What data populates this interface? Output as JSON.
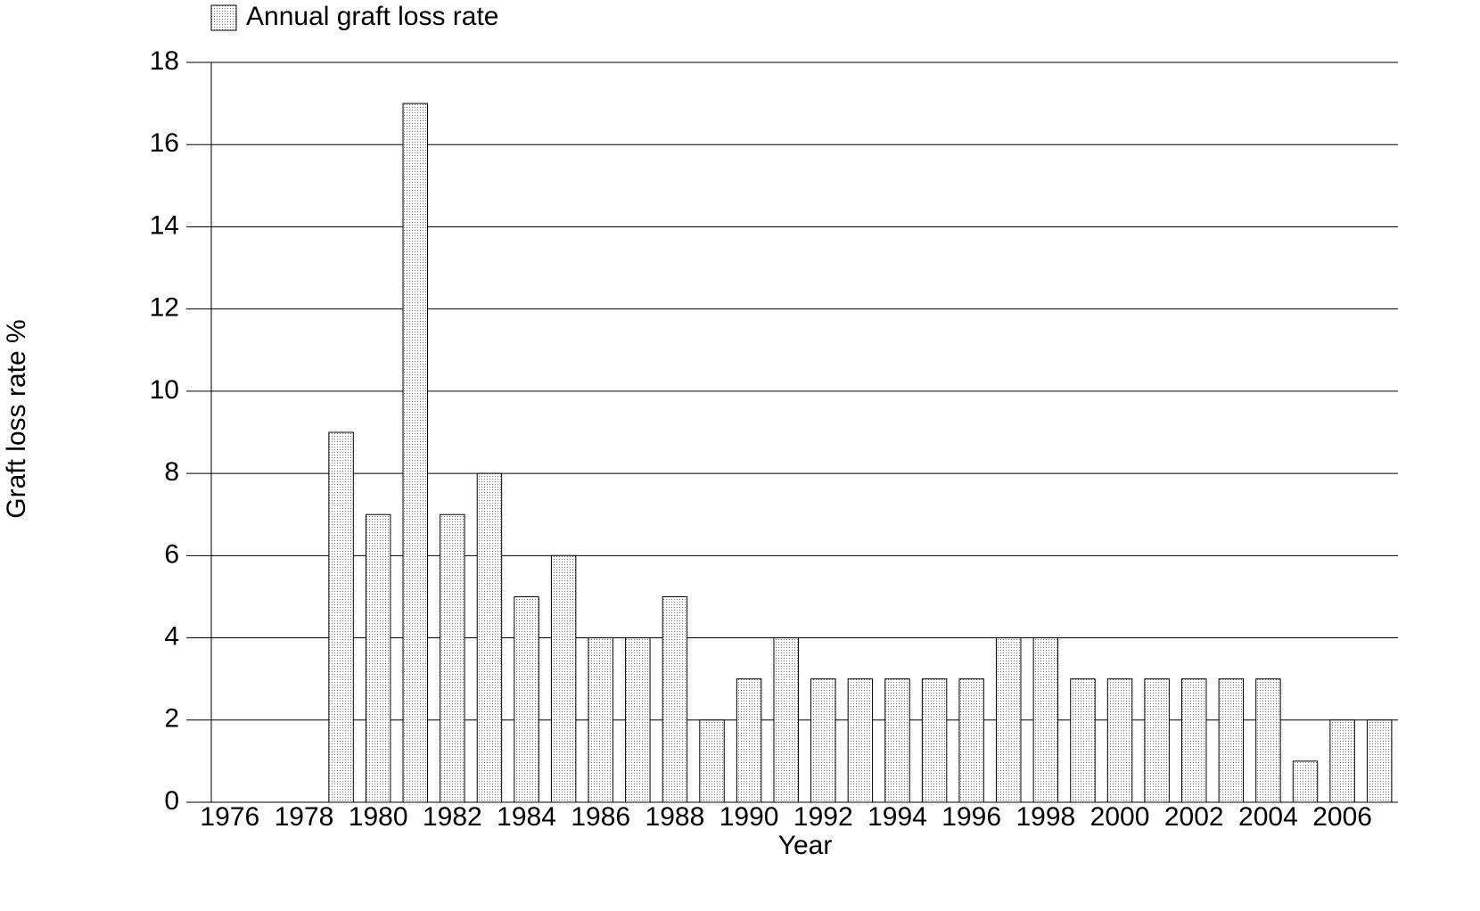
{
  "chart_data": {
    "type": "bar",
    "legend_label": "Annual graft loss rate",
    "x_label": "Year",
    "y_label": "Graft loss rate %",
    "categories": [
      "1976",
      null,
      "1978",
      null,
      "1980",
      null,
      "1982",
      null,
      "1984",
      null,
      "1986",
      null,
      "1988",
      null,
      "1990",
      null,
      "1992",
      null,
      "1994",
      null,
      "1996",
      null,
      "1998",
      null,
      "2000",
      null,
      "2002",
      null,
      "2004",
      null,
      "2006",
      null
    ],
    "values": [
      null,
      null,
      null,
      9,
      7,
      17,
      7,
      8,
      5,
      6,
      4,
      4,
      5,
      2,
      3,
      4,
      3,
      3,
      3,
      3,
      3,
      4,
      4,
      3,
      3,
      3,
      3,
      3,
      3,
      1,
      2,
      2
    ],
    "color": "#e6e6e6",
    "ylim": [
      0,
      18
    ],
    "yticks": [
      0,
      2,
      4,
      6,
      8,
      10,
      12,
      14,
      16,
      18
    ],
    "grid": true
  }
}
